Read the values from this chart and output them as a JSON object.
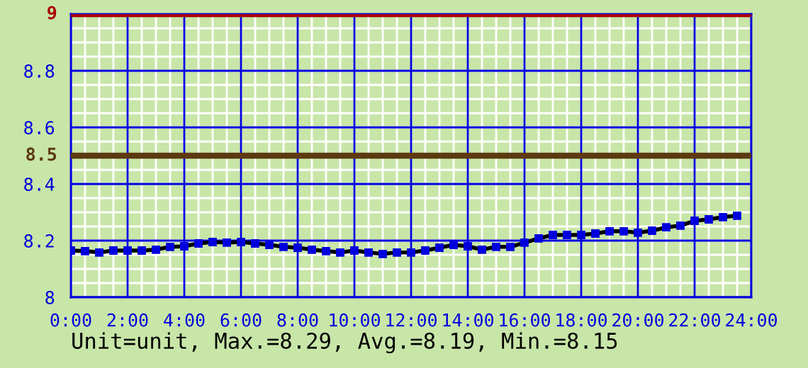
{
  "chart_data": {
    "type": "line",
    "x": [
      0,
      0.5,
      1,
      1.5,
      2,
      2.5,
      3,
      3.5,
      4,
      4.5,
      5,
      5.5,
      6,
      6.5,
      7,
      7.5,
      8,
      8.5,
      9,
      9.5,
      10,
      10.5,
      11,
      11.5,
      12,
      12.5,
      13,
      13.5,
      14,
      14.5,
      15,
      15.5,
      16,
      16.5,
      17,
      17.5,
      18,
      18.5,
      19,
      19.5,
      20,
      20.5,
      21,
      21.5,
      22,
      22.5,
      23,
      23.5
    ],
    "series": [
      {
        "color": "#000000",
        "values": [
          8.165,
          8.163,
          8.158,
          8.165,
          8.165,
          8.165,
          8.168,
          8.178,
          8.18,
          8.19,
          8.195,
          8.193,
          8.195,
          8.19,
          8.185,
          8.178,
          8.175,
          8.168,
          8.163,
          8.158,
          8.165,
          8.158,
          8.153,
          8.158,
          8.158,
          8.165,
          8.175,
          8.185,
          8.18,
          8.168,
          8.178,
          8.178,
          8.193,
          8.208,
          8.22,
          8.22,
          8.22,
          8.225,
          8.233,
          8.233,
          8.228,
          8.235,
          8.247,
          8.253,
          8.27,
          8.275,
          8.283,
          8.288
        ]
      }
    ],
    "xlim": [
      0,
      24
    ],
    "xticks": [
      {
        "value": 0,
        "label": "0:00"
      },
      {
        "value": 2,
        "label": "2:00"
      },
      {
        "value": 4,
        "label": "4:00"
      },
      {
        "value": 6,
        "label": "6:00"
      },
      {
        "value": 8,
        "label": "8:00"
      },
      {
        "value": 10,
        "label": "10:00"
      },
      {
        "value": 12,
        "label": "12:00"
      },
      {
        "value": 14,
        "label": "14:00"
      },
      {
        "value": 16,
        "label": "16:00"
      },
      {
        "value": 18,
        "label": "18:00"
      },
      {
        "value": 20,
        "label": "20:00"
      },
      {
        "value": 22,
        "label": "22:00"
      },
      {
        "value": 24,
        "label": "24:00"
      }
    ],
    "ylim": [
      8,
      9
    ],
    "yticks": [
      8,
      8.2,
      8.4,
      8.6,
      8.8
    ],
    "ref_lines": [
      {
        "axis": "y",
        "value": 9,
        "label": "9",
        "color": "#aa0000"
      },
      {
        "axis": "y",
        "value": 8.5,
        "label": "8.5",
        "color": "#5c3a10"
      }
    ],
    "annotations": [
      "Unit=unit, Max.=8.29, Avg.=8.19, Min.=8.15"
    ],
    "grid": true,
    "marker": "square",
    "line_style": "solid",
    "legend": false
  }
}
